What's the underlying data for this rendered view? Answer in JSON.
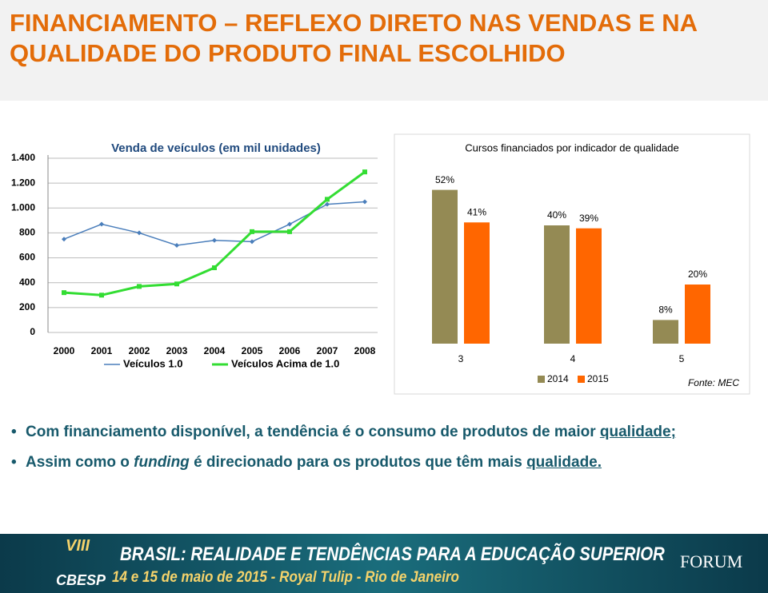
{
  "header": {
    "title": "FINANCIAMENTO – REFLEXO DIRETO NAS VENDAS E NA QUALIDADE DO PRODUTO FINAL ESCOLHIDO"
  },
  "chart_data": [
    {
      "type": "line",
      "title": "Venda de veículos (em mil unidades)",
      "categories": [
        "2000",
        "2001",
        "2002",
        "2003",
        "2004",
        "2005",
        "2006",
        "2007",
        "2008"
      ],
      "series": [
        {
          "name": "Veículos 1.0",
          "color": "#4a7ebb",
          "values": [
            750,
            870,
            800,
            700,
            740,
            730,
            870,
            1030,
            1050
          ]
        },
        {
          "name": "Veículos Acima de 1.0",
          "color": "#33dd33",
          "values": [
            320,
            300,
            370,
            390,
            520,
            810,
            810,
            1070,
            1290
          ]
        }
      ],
      "ylim": [
        0,
        1400
      ],
      "yticks": [
        0,
        200,
        400,
        600,
        800,
        {
          "value": 1000,
          "label": "1.000"
        },
        {
          "value": 1200,
          "label": "1.200"
        },
        {
          "value": 1400,
          "label": "1.400"
        }
      ],
      "grid": true
    },
    {
      "type": "bar",
      "title": "Cursos financiados por indicador de qualidade",
      "categories": [
        "3",
        "4",
        "5"
      ],
      "series": [
        {
          "name": "2014",
          "color": "#948a54",
          "values": [
            52,
            40,
            8
          ],
          "value_labels": [
            "52%",
            "40%",
            "8%"
          ]
        },
        {
          "name": "2015",
          "color": "#ff6600",
          "values": [
            41,
            39,
            20
          ],
          "value_labels": [
            "41%",
            "39%",
            "20%"
          ]
        }
      ],
      "ylim": [
        0,
        60
      ],
      "source": "Fonte: MEC"
    }
  ],
  "bullets": [
    [
      "Com financiamento disponível, a tendência é o consumo de produtos de maior ",
      "qualidade;"
    ],
    [
      "Assim como o ",
      "funding",
      " é direcionado para os produtos que têm mais ",
      "qualidade."
    ]
  ],
  "footer": {
    "headline": "BRASIL: REALIDADE E TENDÊNCIAS PARA A EDUCAÇÃO SUPERIOR",
    "subline": "14 e 15 de maio de 2015 - Royal Tulip - Rio de Janeiro",
    "edition": "VIII",
    "logo": "CBESP",
    "brand": "FORUM"
  }
}
